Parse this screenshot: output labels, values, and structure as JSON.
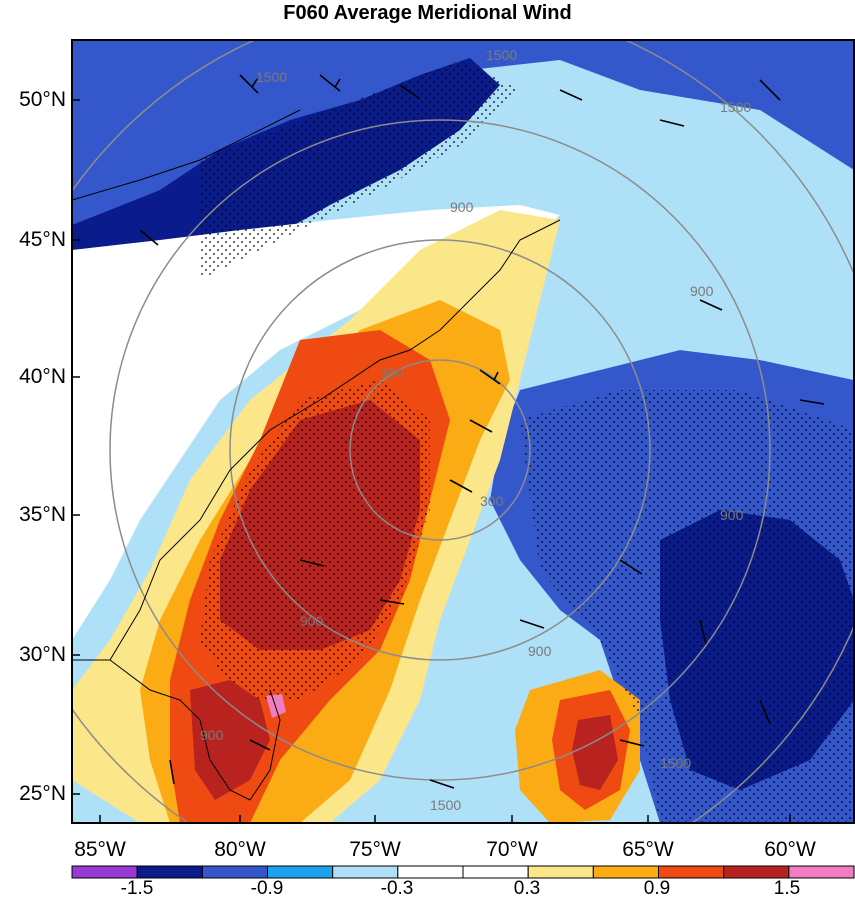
{
  "title": "F060 Average Meridional Wind",
  "lat_labels": [
    "50°N",
    "45°N",
    "40°N",
    "35°N",
    "30°N",
    "25°N"
  ],
  "lon_labels": [
    "85°W",
    "80°W",
    "75°W",
    "70°W",
    "65°W",
    "60°W"
  ],
  "contour_labels": [
    "1500",
    "1500",
    "1500",
    "900",
    "900",
    "900",
    "900",
    "900",
    "300",
    "300",
    "900",
    "1500",
    "1500"
  ],
  "colorbar": {
    "labels": [
      "-1.5",
      "-0.9",
      "-0.3",
      "0.3",
      "0.9",
      "1.5"
    ],
    "colors": [
      "#9a3ad6",
      "#0a1c8c",
      "#3458cc",
      "#1ea2ee",
      "#aee0f8",
      "#ffffff",
      "#ffffff",
      "#fbe78a",
      "#fbab14",
      "#ee4a12",
      "#b8231f",
      "#f07ec0"
    ]
  },
  "colors": {
    "strong_negative": "#0a1c8c",
    "negative": "#3458cc",
    "weak_negative": "#1ea2ee",
    "slight_negative": "#aee0f8",
    "slight_positive": "#fbe78a",
    "weak_positive": "#fbab14",
    "positive": "#ee4a12",
    "strong_positive": "#b8231f",
    "extreme_positive": "#f07ec0"
  }
}
